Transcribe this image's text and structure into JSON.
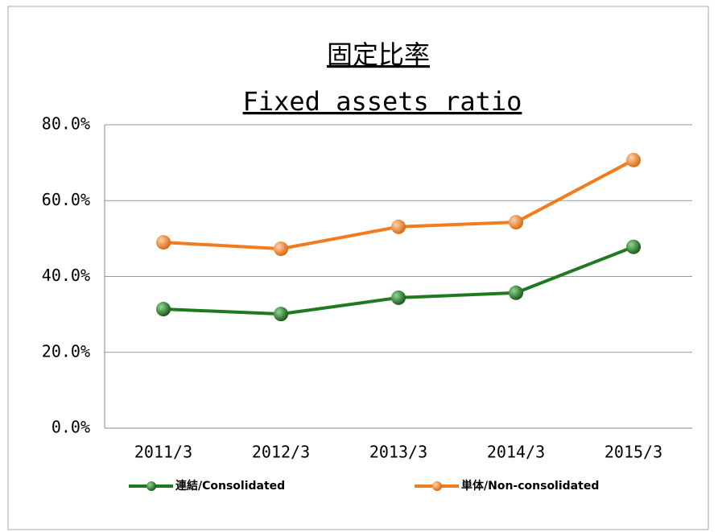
{
  "chart_data": {
    "type": "line",
    "title": "固定比率",
    "subtitle": "Fixed assets ratio",
    "categories": [
      "2011/3",
      "2012/3",
      "2013/3",
      "2014/3",
      "2015/3"
    ],
    "series": [
      {
        "name": "連結/Consolidated",
        "color": "#1f7a1f",
        "values": [
          31.4,
          30.1,
          34.4,
          35.7,
          47.8
        ]
      },
      {
        "name": "単体/Non-consolidated",
        "color": "#f27b1c",
        "values": [
          49.0,
          47.3,
          53.1,
          54.3,
          70.7
        ]
      }
    ],
    "ylim": [
      0,
      80
    ],
    "yticks": [
      {
        "value": 0,
        "label": "0.0%"
      },
      {
        "value": 20,
        "label": "20.0%"
      },
      {
        "value": 40,
        "label": "40.0%"
      },
      {
        "value": 60,
        "label": "60.0%"
      },
      {
        "value": 80,
        "label": "80.0%"
      }
    ],
    "grid": true,
    "legend": "bottom"
  }
}
